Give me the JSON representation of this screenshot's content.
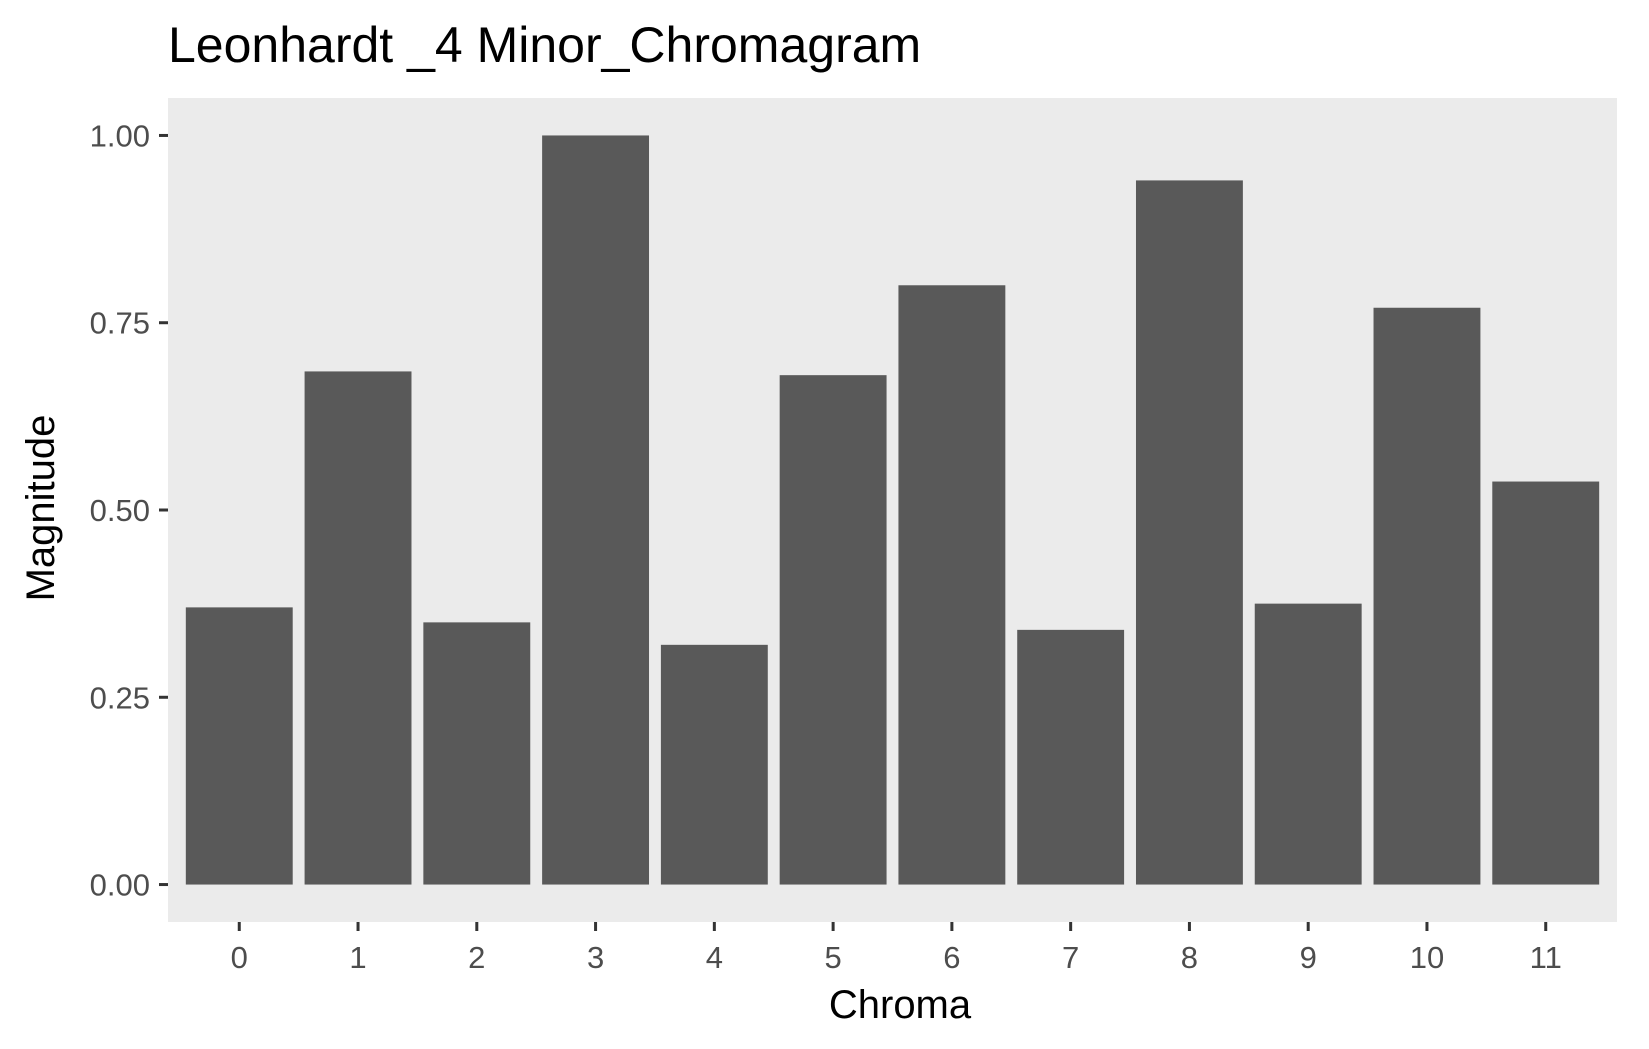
{
  "chart_data": {
    "type": "bar",
    "title": "Leonhardt _4 Minor_Chromagram",
    "xlabel": "Chroma",
    "ylabel": "Magnitude",
    "categories": [
      "0",
      "1",
      "2",
      "3",
      "4",
      "5",
      "6",
      "7",
      "8",
      "9",
      "10",
      "11"
    ],
    "values": [
      0.37,
      0.685,
      0.35,
      1.0,
      0.32,
      0.68,
      0.8,
      0.34,
      0.94,
      0.375,
      0.77,
      0.538
    ],
    "ylim": [
      -0.05,
      1.05
    ],
    "yticks": [
      0,
      0.25,
      0.5,
      0.75,
      1.0
    ],
    "ytick_labels": [
      "0.00",
      "0.25",
      "0.50",
      "0.75",
      "1.00"
    ],
    "grid": false,
    "legend": "none",
    "colors": {
      "bar": "#595959",
      "panel": "#ebebeb",
      "axis_text": "#4d4d4d",
      "tick": "#333333",
      "text": "#000000"
    }
  }
}
